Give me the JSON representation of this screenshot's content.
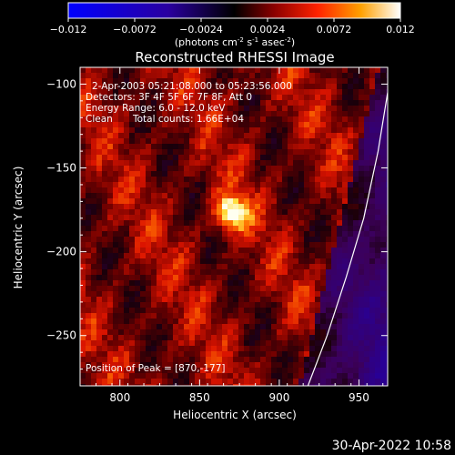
{
  "chart_data": {
    "type": "heatmap",
    "title": "Reconstructed RHESSI Image",
    "xlabel": "Heliocentric X (arcsec)",
    "ylabel": "Heliocentric Y (arcsec)",
    "xlim": [
      775,
      968
    ],
    "ylim": [
      -280,
      -90
    ],
    "x_ticks": [
      800,
      850,
      900,
      950
    ],
    "y_ticks": [
      -100,
      -150,
      -200,
      -250
    ],
    "colorbar": {
      "label": "(photons cm",
      "label_sup1": "-2",
      "label_mid1": " s",
      "label_sup2": "-1",
      "label_mid2": " asec",
      "label_sup3": "-2",
      "label_end": ")",
      "range": [
        -0.012,
        0.012
      ],
      "ticks": [
        -0.012,
        -0.0072,
        -0.0024,
        0.0024,
        0.0072,
        0.012
      ],
      "tick_labels": [
        "−0.012",
        "−0.0072",
        "−0.0024",
        "0.0024",
        "0.0072",
        "0.012"
      ],
      "colormap": [
        "#0000ff",
        "#000000",
        "#8b0000",
        "#ff2200",
        "#ff9900",
        "#ffff66",
        "#ffffff"
      ]
    },
    "annotations": {
      "time_range": "2-Apr-2003 05:21:08.000 to 05:23:56.000",
      "detectors": "Detectors: 3F 4F 5F 6F 7F 8F, Att 0",
      "energy_range": "Energy Range: 6.0 - 12.0 keV",
      "clean_label": "Clean",
      "total_counts": "Total counts: 1.66E+04",
      "peak_position": "Position of Peak = [870,-177]"
    },
    "peak": {
      "x": 870,
      "y": -177,
      "value": 0.012
    },
    "limb_curve": [
      [
        918,
        -280
      ],
      [
        930,
        -250
      ],
      [
        942,
        -215
      ],
      [
        953,
        -180
      ],
      [
        962,
        -140
      ],
      [
        968,
        -105
      ]
    ],
    "footer_timestamp": "30-Apr-2022 10:58"
  }
}
